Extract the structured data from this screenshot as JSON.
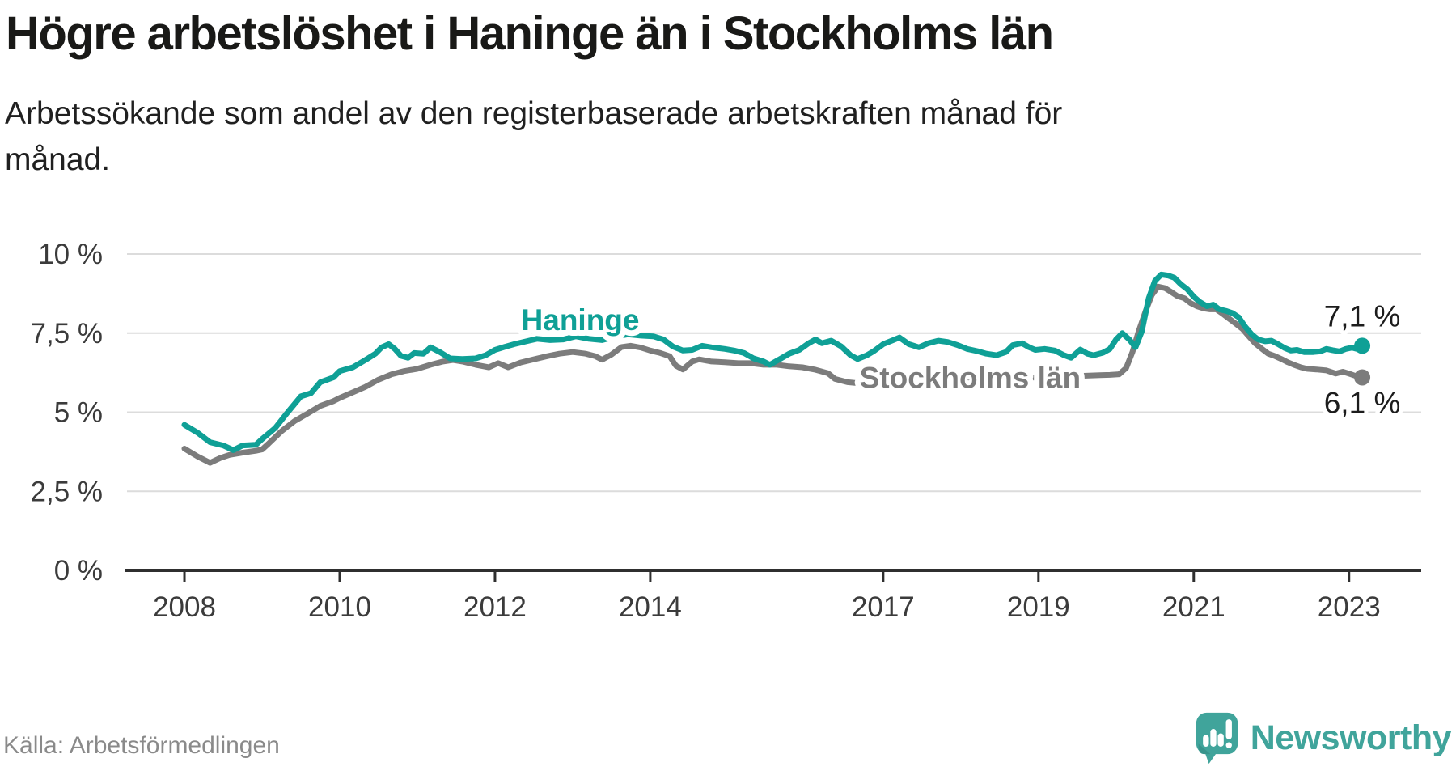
{
  "header": {
    "title": "Högre arbetslöshet i Haninge än i Stockholms län",
    "subtitle": "Arbetssökande som andel av den registerbaserade arbetskraften månad för\nmånad."
  },
  "footer": {
    "source": "Källa: Arbetsförmedlingen",
    "brand": "Newsworthy",
    "brand_color": "#40a49b"
  },
  "chart_data": {
    "type": "line",
    "title": "Högre arbetslöshet i Haninge än i Stockholms län",
    "subtitle": "Arbetssökande som andel av den registerbaserade arbetskraften månad för månad.",
    "xlabel": "",
    "ylabel": "",
    "unit": "%",
    "grid": true,
    "legend_position": "inline-labels",
    "xlim": [
      2007.26,
      2023.93
    ],
    "ylim": [
      0,
      10
    ],
    "x_ticks": [
      {
        "v": 2008,
        "label": "2008"
      },
      {
        "v": 2010,
        "label": "2010"
      },
      {
        "v": 2012,
        "label": "2012"
      },
      {
        "v": 2014,
        "label": "2014"
      },
      {
        "v": 2017,
        "label": "2017"
      },
      {
        "v": 2019,
        "label": "2019"
      },
      {
        "v": 2021,
        "label": "2021"
      },
      {
        "v": 2023,
        "label": "2023"
      }
    ],
    "y_ticks": [
      {
        "v": 0,
        "label": "0 %"
      },
      {
        "v": 2.5,
        "label": "2,5 %"
      },
      {
        "v": 5,
        "label": "5 %"
      },
      {
        "v": 7.5,
        "label": "7,5 %"
      },
      {
        "v": 10,
        "label": "10 %"
      }
    ],
    "series": [
      {
        "name": "Stockholms län",
        "color": "#7c7c7c",
        "label_text": "Stockholms län",
        "label_at": [
          2018.12,
          5.77
        ],
        "end_label": "6,1 %",
        "end_value": 6.1,
        "end_label_side": "below",
        "points": [
          [
            2008.0,
            3.85
          ],
          [
            2008.17,
            3.6
          ],
          [
            2008.33,
            3.4
          ],
          [
            2008.46,
            3.55
          ],
          [
            2008.58,
            3.65
          ],
          [
            2008.75,
            3.72
          ],
          [
            2008.92,
            3.78
          ],
          [
            2009.0,
            3.82
          ],
          [
            2009.08,
            4.0
          ],
          [
            2009.25,
            4.4
          ],
          [
            2009.42,
            4.72
          ],
          [
            2009.58,
            4.95
          ],
          [
            2009.75,
            5.2
          ],
          [
            2009.92,
            5.35
          ],
          [
            2010.0,
            5.45
          ],
          [
            2010.17,
            5.63
          ],
          [
            2010.33,
            5.8
          ],
          [
            2010.5,
            6.03
          ],
          [
            2010.67,
            6.2
          ],
          [
            2010.83,
            6.3
          ],
          [
            2011.0,
            6.37
          ],
          [
            2011.17,
            6.5
          ],
          [
            2011.33,
            6.6
          ],
          [
            2011.46,
            6.65
          ],
          [
            2011.58,
            6.6
          ],
          [
            2011.75,
            6.5
          ],
          [
            2011.92,
            6.42
          ],
          [
            2012.04,
            6.55
          ],
          [
            2012.17,
            6.42
          ],
          [
            2012.33,
            6.57
          ],
          [
            2012.5,
            6.67
          ],
          [
            2012.67,
            6.77
          ],
          [
            2012.83,
            6.85
          ],
          [
            2013.0,
            6.9
          ],
          [
            2013.17,
            6.85
          ],
          [
            2013.29,
            6.77
          ],
          [
            2013.38,
            6.66
          ],
          [
            2013.5,
            6.82
          ],
          [
            2013.63,
            7.06
          ],
          [
            2013.75,
            7.1
          ],
          [
            2013.88,
            7.04
          ],
          [
            2014.0,
            6.95
          ],
          [
            2014.13,
            6.87
          ],
          [
            2014.25,
            6.77
          ],
          [
            2014.33,
            6.47
          ],
          [
            2014.42,
            6.35
          ],
          [
            2014.54,
            6.6
          ],
          [
            2014.63,
            6.67
          ],
          [
            2014.79,
            6.6
          ],
          [
            2014.96,
            6.58
          ],
          [
            2015.13,
            6.55
          ],
          [
            2015.29,
            6.55
          ],
          [
            2015.46,
            6.5
          ],
          [
            2015.63,
            6.5
          ],
          [
            2015.79,
            6.45
          ],
          [
            2015.96,
            6.42
          ],
          [
            2016.13,
            6.34
          ],
          [
            2016.29,
            6.23
          ],
          [
            2016.38,
            6.05
          ],
          [
            2016.54,
            5.95
          ],
          [
            2016.75,
            5.9
          ],
          [
            2017.0,
            5.88
          ],
          [
            2017.33,
            5.9
          ],
          [
            2017.67,
            5.95
          ],
          [
            2018.0,
            6.0
          ],
          [
            2018.33,
            6.03
          ],
          [
            2018.67,
            6.07
          ],
          [
            2019.0,
            6.1
          ],
          [
            2019.33,
            6.13
          ],
          [
            2019.58,
            6.15
          ],
          [
            2019.79,
            6.17
          ],
          [
            2019.92,
            6.18
          ],
          [
            2020.04,
            6.2
          ],
          [
            2020.13,
            6.4
          ],
          [
            2020.21,
            6.9
          ],
          [
            2020.29,
            7.55
          ],
          [
            2020.38,
            8.2
          ],
          [
            2020.46,
            8.7
          ],
          [
            2020.54,
            8.97
          ],
          [
            2020.63,
            8.92
          ],
          [
            2020.71,
            8.8
          ],
          [
            2020.79,
            8.67
          ],
          [
            2020.88,
            8.6
          ],
          [
            2020.96,
            8.45
          ],
          [
            2021.04,
            8.35
          ],
          [
            2021.13,
            8.28
          ],
          [
            2021.21,
            8.25
          ],
          [
            2021.29,
            8.25
          ],
          [
            2021.38,
            8.1
          ],
          [
            2021.46,
            7.95
          ],
          [
            2021.54,
            7.8
          ],
          [
            2021.63,
            7.63
          ],
          [
            2021.71,
            7.4
          ],
          [
            2021.79,
            7.18
          ],
          [
            2021.88,
            7.0
          ],
          [
            2021.96,
            6.85
          ],
          [
            2022.04,
            6.78
          ],
          [
            2022.13,
            6.68
          ],
          [
            2022.21,
            6.58
          ],
          [
            2022.29,
            6.5
          ],
          [
            2022.38,
            6.42
          ],
          [
            2022.46,
            6.37
          ],
          [
            2022.58,
            6.35
          ],
          [
            2022.71,
            6.32
          ],
          [
            2022.83,
            6.22
          ],
          [
            2022.92,
            6.28
          ],
          [
            2023.0,
            6.22
          ],
          [
            2023.08,
            6.15
          ],
          [
            2023.17,
            6.1
          ]
        ]
      },
      {
        "name": "Haninge",
        "color": "#0fa096",
        "label_text": "Haninge",
        "label_at": [
          2013.1,
          7.6
        ],
        "end_label": "7,1 %",
        "end_value": 7.1,
        "end_label_side": "above",
        "points": [
          [
            2008.0,
            4.6
          ],
          [
            2008.17,
            4.35
          ],
          [
            2008.33,
            4.05
          ],
          [
            2008.5,
            3.95
          ],
          [
            2008.63,
            3.8
          ],
          [
            2008.75,
            3.95
          ],
          [
            2008.92,
            3.97
          ],
          [
            2009.0,
            4.15
          ],
          [
            2009.17,
            4.5
          ],
          [
            2009.33,
            5.0
          ],
          [
            2009.5,
            5.5
          ],
          [
            2009.63,
            5.6
          ],
          [
            2009.75,
            5.95
          ],
          [
            2009.92,
            6.1
          ],
          [
            2010.0,
            6.3
          ],
          [
            2010.17,
            6.42
          ],
          [
            2010.33,
            6.65
          ],
          [
            2010.46,
            6.85
          ],
          [
            2010.54,
            7.05
          ],
          [
            2010.63,
            7.15
          ],
          [
            2010.71,
            7.0
          ],
          [
            2010.79,
            6.78
          ],
          [
            2010.88,
            6.72
          ],
          [
            2010.96,
            6.87
          ],
          [
            2011.08,
            6.85
          ],
          [
            2011.17,
            7.05
          ],
          [
            2011.29,
            6.9
          ],
          [
            2011.42,
            6.7
          ],
          [
            2011.58,
            6.68
          ],
          [
            2011.75,
            6.7
          ],
          [
            2011.88,
            6.8
          ],
          [
            2012.0,
            6.97
          ],
          [
            2012.13,
            7.07
          ],
          [
            2012.25,
            7.15
          ],
          [
            2012.42,
            7.25
          ],
          [
            2012.54,
            7.32
          ],
          [
            2012.71,
            7.28
          ],
          [
            2012.88,
            7.3
          ],
          [
            2013.04,
            7.4
          ],
          [
            2013.21,
            7.32
          ],
          [
            2013.38,
            7.28
          ],
          [
            2013.54,
            7.38
          ],
          [
            2013.71,
            7.46
          ],
          [
            2013.88,
            7.42
          ],
          [
            2014.04,
            7.4
          ],
          [
            2014.17,
            7.3
          ],
          [
            2014.29,
            7.08
          ],
          [
            2014.42,
            6.95
          ],
          [
            2014.54,
            6.97
          ],
          [
            2014.67,
            7.1
          ],
          [
            2014.79,
            7.05
          ],
          [
            2014.96,
            7.0
          ],
          [
            2015.08,
            6.95
          ],
          [
            2015.21,
            6.87
          ],
          [
            2015.33,
            6.7
          ],
          [
            2015.46,
            6.6
          ],
          [
            2015.54,
            6.5
          ],
          [
            2015.67,
            6.68
          ],
          [
            2015.79,
            6.85
          ],
          [
            2015.92,
            6.97
          ],
          [
            2016.04,
            7.18
          ],
          [
            2016.13,
            7.3
          ],
          [
            2016.21,
            7.18
          ],
          [
            2016.33,
            7.26
          ],
          [
            2016.46,
            7.08
          ],
          [
            2016.58,
            6.8
          ],
          [
            2016.67,
            6.68
          ],
          [
            2016.79,
            6.8
          ],
          [
            2016.88,
            6.93
          ],
          [
            2017.0,
            7.15
          ],
          [
            2017.13,
            7.28
          ],
          [
            2017.21,
            7.36
          ],
          [
            2017.33,
            7.15
          ],
          [
            2017.46,
            7.05
          ],
          [
            2017.58,
            7.18
          ],
          [
            2017.71,
            7.26
          ],
          [
            2017.83,
            7.22
          ],
          [
            2017.96,
            7.12
          ],
          [
            2018.08,
            7.0
          ],
          [
            2018.21,
            6.93
          ],
          [
            2018.33,
            6.85
          ],
          [
            2018.46,
            6.8
          ],
          [
            2018.58,
            6.9
          ],
          [
            2018.67,
            7.12
          ],
          [
            2018.79,
            7.18
          ],
          [
            2018.88,
            7.05
          ],
          [
            2018.96,
            6.97
          ],
          [
            2019.08,
            7.0
          ],
          [
            2019.21,
            6.95
          ],
          [
            2019.33,
            6.8
          ],
          [
            2019.42,
            6.72
          ],
          [
            2019.54,
            6.98
          ],
          [
            2019.63,
            6.85
          ],
          [
            2019.71,
            6.8
          ],
          [
            2019.83,
            6.88
          ],
          [
            2019.92,
            7.0
          ],
          [
            2020.0,
            7.3
          ],
          [
            2020.08,
            7.5
          ],
          [
            2020.17,
            7.3
          ],
          [
            2020.25,
            7.05
          ],
          [
            2020.33,
            7.55
          ],
          [
            2020.42,
            8.6
          ],
          [
            2020.5,
            9.15
          ],
          [
            2020.58,
            9.35
          ],
          [
            2020.67,
            9.32
          ],
          [
            2020.75,
            9.25
          ],
          [
            2020.83,
            9.05
          ],
          [
            2020.92,
            8.88
          ],
          [
            2021.0,
            8.65
          ],
          [
            2021.08,
            8.48
          ],
          [
            2021.17,
            8.35
          ],
          [
            2021.25,
            8.4
          ],
          [
            2021.33,
            8.25
          ],
          [
            2021.42,
            8.2
          ],
          [
            2021.5,
            8.13
          ],
          [
            2021.58,
            8.0
          ],
          [
            2021.67,
            7.68
          ],
          [
            2021.75,
            7.45
          ],
          [
            2021.83,
            7.3
          ],
          [
            2021.92,
            7.24
          ],
          [
            2022.0,
            7.26
          ],
          [
            2022.08,
            7.16
          ],
          [
            2022.17,
            7.03
          ],
          [
            2022.25,
            6.95
          ],
          [
            2022.33,
            6.97
          ],
          [
            2022.42,
            6.9
          ],
          [
            2022.54,
            6.9
          ],
          [
            2022.63,
            6.92
          ],
          [
            2022.71,
            7.0
          ],
          [
            2022.79,
            6.96
          ],
          [
            2022.88,
            6.92
          ],
          [
            2022.96,
            7.0
          ],
          [
            2023.04,
            7.04
          ],
          [
            2023.1,
            7.0
          ],
          [
            2023.17,
            7.1
          ]
        ]
      }
    ]
  }
}
